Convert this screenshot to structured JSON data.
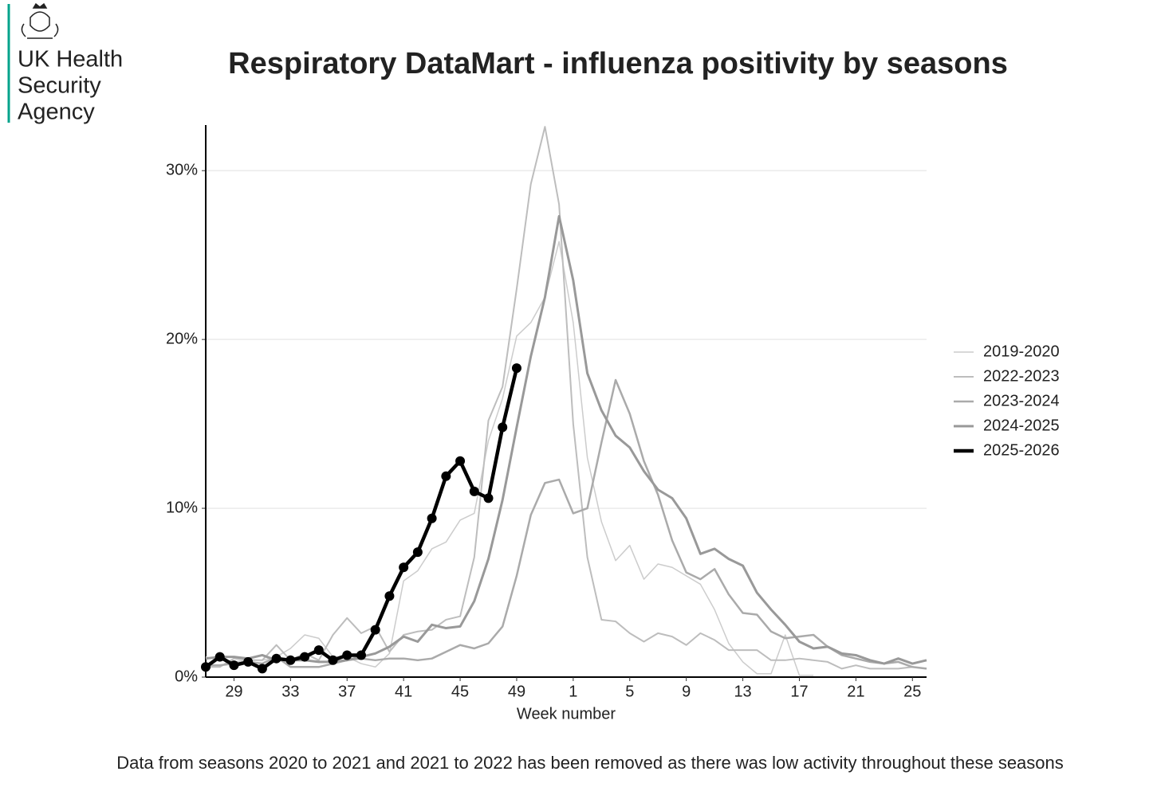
{
  "logo": [
    "UK Health",
    "Security",
    "Agency"
  ],
  "chart_data": {
    "type": "line",
    "title": "Respiratory DataMart - influenza positivity by seasons",
    "x_label": "Week number",
    "footnote": "Data from seasons 2020 to 2021 and 2021 to 2022 has been removed as there was low activity throughout these seasons",
    "categories": [
      null,
      null,
      "29",
      null,
      null,
      null,
      "33",
      null,
      null,
      null,
      "37",
      null,
      null,
      null,
      "41",
      null,
      null,
      null,
      "45",
      null,
      null,
      null,
      "49",
      null,
      null,
      null,
      "1",
      null,
      null,
      null,
      "5",
      null,
      null,
      null,
      "9",
      null,
      null,
      null,
      "13",
      null,
      null,
      null,
      "17",
      null,
      null,
      null,
      "21",
      null,
      null,
      null,
      "25",
      null
    ],
    "ylim": [
      0,
      32.7
    ],
    "yticks": [
      {
        "value": 0,
        "label": "0%"
      },
      {
        "value": 10,
        "label": "10%"
      },
      {
        "value": 20,
        "label": "20%"
      },
      {
        "value": 30,
        "label": "30%"
      }
    ],
    "grid": true,
    "legend": "right",
    "series": [
      {
        "name": "2019-2020",
        "color": "#cccccc",
        "values": [
          1.2,
          1.0,
          0.9,
          1.0,
          1.0,
          1.2,
          1.7,
          2.5,
          2.3,
          1.2,
          1.2,
          0.8,
          0.6,
          1.4,
          5.7,
          6.3,
          7.6,
          8.0,
          9.3,
          9.7,
          14.0,
          16.5,
          20.2,
          21.0,
          22.5,
          25.8,
          21.0,
          13.0,
          9.2,
          6.9,
          7.8,
          5.8,
          6.7,
          6.5,
          6.0,
          5.5,
          4.0,
          2.0,
          0.9,
          0.2,
          0.2,
          2.5,
          0.1,
          0.1,
          null,
          null,
          null,
          null,
          null,
          null,
          null,
          null
        ]
      },
      {
        "name": "2022-2023",
        "color": "#bdbdbd",
        "values": [
          0.6,
          0.6,
          1.1,
          1.0,
          1.0,
          1.9,
          1.0,
          1.4,
          1.0,
          2.5,
          3.5,
          2.6,
          3.0,
          1.5,
          2.5,
          2.7,
          2.8,
          3.4,
          3.6,
          7.1,
          15.2,
          17.2,
          23.0,
          29.2,
          32.6,
          28.0,
          15.0,
          7.1,
          3.4,
          3.3,
          2.6,
          2.1,
          2.6,
          2.4,
          1.9,
          2.6,
          2.2,
          1.6,
          1.6,
          1.6,
          1.0,
          1.0,
          1.1,
          1.0,
          0.9,
          0.5,
          0.7,
          0.5,
          0.5,
          0.5,
          0.6,
          0.5
        ]
      },
      {
        "name": "2023-2024",
        "color": "#aaaaaa",
        "values": [
          0.7,
          0.7,
          0.8,
          0.9,
          0.8,
          1.2,
          0.6,
          0.6,
          0.6,
          0.8,
          1.0,
          1.1,
          1.0,
          1.1,
          1.1,
          1.0,
          1.1,
          1.5,
          1.9,
          1.7,
          2.0,
          3.0,
          6.0,
          9.6,
          11.5,
          11.7,
          9.7,
          10.0,
          13.9,
          17.6,
          15.6,
          12.8,
          10.8,
          8.1,
          6.2,
          5.8,
          6.4,
          4.9,
          3.8,
          3.7,
          2.7,
          2.3,
          2.4,
          2.5,
          1.8,
          1.3,
          1.1,
          0.9,
          0.8,
          0.9,
          0.6,
          0.5
        ]
      },
      {
        "name": "2024-2025",
        "color": "#999999",
        "values": [
          1.1,
          1.2,
          1.2,
          1.1,
          1.3,
          1.0,
          1.0,
          1.0,
          0.9,
          0.9,
          1.0,
          1.2,
          1.4,
          1.8,
          2.4,
          2.1,
          3.1,
          2.9,
          3.0,
          4.5,
          7.0,
          10.5,
          14.8,
          19.0,
          22.5,
          27.3,
          23.5,
          18.0,
          15.8,
          14.3,
          13.6,
          12.2,
          11.1,
          10.6,
          9.4,
          7.3,
          7.6,
          7.0,
          6.6,
          5.0,
          4.0,
          3.1,
          2.1,
          1.7,
          1.8,
          1.4,
          1.3,
          1.0,
          0.8,
          1.1,
          0.8,
          1.0
        ]
      },
      {
        "name": "2025-2026",
        "color": "#000000",
        "markers": true,
        "values": [
          0.6,
          1.2,
          0.7,
          0.9,
          0.5,
          1.1,
          1.0,
          1.2,
          1.6,
          1.0,
          1.3,
          1.3,
          2.8,
          4.8,
          6.5,
          7.4,
          9.4,
          11.9,
          12.8,
          11.0,
          10.6,
          14.8,
          18.3,
          null,
          null,
          null,
          null,
          null,
          null,
          null,
          null,
          null,
          null,
          null,
          null,
          null,
          null,
          null,
          null,
          null,
          null,
          null,
          null,
          null,
          null,
          null,
          null,
          null,
          null,
          null,
          null,
          null
        ]
      }
    ]
  }
}
